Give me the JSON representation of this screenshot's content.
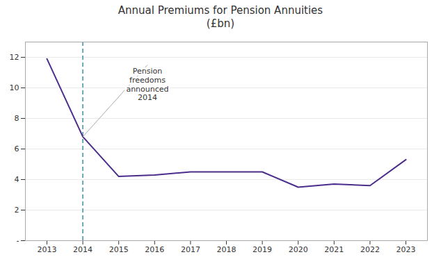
{
  "chart_data": {
    "type": "line",
    "title": "Annual Premiums for Pension Annuities\n(£bn)",
    "x": [
      2013,
      2014,
      2015,
      2016,
      2017,
      2018,
      2019,
      2020,
      2021,
      2022,
      2023
    ],
    "values": [
      11.9,
      6.8,
      4.2,
      4.3,
      4.5,
      4.5,
      4.5,
      3.5,
      3.7,
      3.6,
      5.3
    ],
    "color": "#4B2D8B",
    "xlim": [
      2012.4,
      2023.6
    ],
    "xticks": [
      2013,
      2014,
      2015,
      2016,
      2017,
      2018,
      2019,
      2020,
      2021,
      2022,
      2023
    ],
    "ylim": [
      0,
      13
    ],
    "yticks": [
      {
        "value": 0,
        "label": "-"
      },
      2,
      4,
      6,
      8,
      10,
      12
    ],
    "grid": true,
    "reference_lines": [
      {
        "x": 2014,
        "color": "#5BA3B0",
        "line_style": "dashed"
      }
    ],
    "annotations": [
      {
        "text": "Pension\nfreedoms\nannounced\n2014",
        "x": 2014,
        "y": 6.8,
        "text_x": 2015.8,
        "text_y": 11.5
      }
    ]
  }
}
